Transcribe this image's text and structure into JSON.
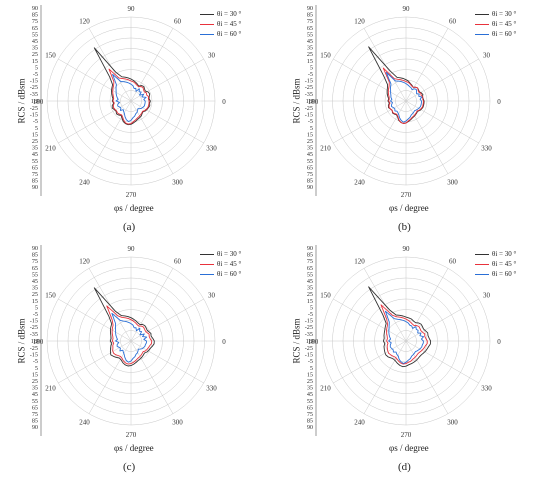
{
  "panels": [
    {
      "caption": "(a)",
      "ylabel": "RCS / dBsm",
      "xlabel": "φs / degree",
      "legend": [
        "θi = 30 °",
        "θi = 45 °",
        "θi = 60 °"
      ]
    },
    {
      "caption": "(b)",
      "ylabel": "RCS / dBsm",
      "xlabel": "φs / degree",
      "legend": [
        "θi = 30 °",
        "θi = 45 °",
        "θi = 60 °"
      ]
    },
    {
      "caption": "(c)",
      "ylabel": "RCS / dBsm",
      "xlabel": "φs / degree",
      "legend": [
        "θi = 30 °",
        "θi = 45 °",
        "θi = 60 °"
      ]
    },
    {
      "caption": "(d)",
      "ylabel": "RCS / dBsm",
      "xlabel": "φs / degree",
      "legend": [
        "θi = 30 °",
        "θi = 45 °",
        "θi = 60 °"
      ]
    }
  ],
  "colors": {
    "s30": "#333333",
    "s45": "#e8323c",
    "s60": "#2a6fd6",
    "grid": "#c8c8c8"
  },
  "chart_data": [
    {
      "type": "polar-line",
      "angle_ticks": [
        "90",
        "60",
        "30",
        "0",
        "330",
        "300",
        "270",
        "240",
        "210",
        "180",
        "150",
        "120"
      ],
      "radial_ticks_upper": [
        "90",
        "85",
        "75",
        "65",
        "55",
        "45",
        "35",
        "25",
        "15",
        "5",
        "-5",
        "-15",
        "-25",
        "-35"
      ],
      "radial_ticks_lower": [
        "-25",
        "-15",
        "-5",
        "5",
        "15",
        "25",
        "35",
        "45",
        "55",
        "65",
        "75",
        "85",
        "90"
      ],
      "series": [
        {
          "name": "θi = 30 °",
          "r": [
            -10,
            -12,
            -11,
            -9,
            -10,
            -13,
            -12,
            -10,
            -11,
            -14,
            -12,
            -10,
            -8,
            -6,
            -4,
            -2,
            0,
            10,
            60,
            10,
            -2,
            -4,
            -6,
            -8,
            -10,
            -12,
            -11,
            -13,
            -10,
            -9,
            -11,
            -12,
            -10,
            -11,
            -13,
            -10,
            -6,
            -4,
            -3,
            -4,
            -6,
            -8,
            -10,
            -11,
            -12,
            -14,
            -15,
            -13,
            -12,
            -11,
            -10,
            -11
          ]
        },
        {
          "name": "θi = 45 °",
          "r": [
            -12,
            -13,
            -12,
            -14,
            -13,
            -15,
            -14,
            -12,
            -13,
            -15,
            -14,
            -12,
            -10,
            -9,
            -7,
            -5,
            -3,
            0,
            20,
            0,
            -4,
            -6,
            -8,
            -10,
            -12,
            -13,
            -12,
            -14,
            -12,
            -11,
            -12,
            -13,
            -12,
            -13,
            -14,
            -12,
            -8,
            -5,
            -4,
            -5,
            -8,
            -10,
            -12,
            -13,
            -14,
            -15,
            -16,
            -14,
            -13,
            -12,
            -12,
            -12
          ]
        },
        {
          "name": "θi = 60 °",
          "r": [
            -18,
            -20,
            -16,
            -22,
            -18,
            -24,
            -19,
            -21,
            -17,
            -23,
            -19,
            -20,
            -16,
            -14,
            -12,
            -10,
            -8,
            -6,
            10,
            -6,
            -9,
            -12,
            -14,
            -16,
            -18,
            -20,
            -17,
            -22,
            -19,
            -18,
            -20,
            -21,
            -18,
            -22,
            -20,
            -18,
            -14,
            -10,
            -8,
            -10,
            -14,
            -16,
            -19,
            -20,
            -22,
            -24,
            -22,
            -20,
            -19,
            -18,
            -18,
            -18
          ]
        }
      ]
    },
    {
      "type": "polar-line",
      "angle_ticks": [
        "90",
        "60",
        "30",
        "0",
        "330",
        "300",
        "270",
        "240",
        "210",
        "180",
        "150",
        "120"
      ],
      "radial_ticks_upper": [
        "90",
        "85",
        "75",
        "65",
        "55",
        "45",
        "35",
        "25",
        "15",
        "5",
        "-5",
        "-15",
        "-25",
        "-35"
      ],
      "radial_ticks_lower": [
        "-25",
        "-15",
        "-5",
        "5",
        "15",
        "25",
        "35",
        "45",
        "55",
        "65",
        "75",
        "85",
        "90"
      ],
      "series": [
        {
          "name": "θi = 30 °",
          "r": [
            -12,
            -13,
            -14,
            -12,
            -13,
            -15,
            -14,
            -13,
            -14,
            -16,
            -14,
            -12,
            -9,
            -7,
            -5,
            -3,
            -1,
            12,
            62,
            12,
            -2,
            -5,
            -7,
            -9,
            -11,
            -13,
            -12,
            -14,
            -12,
            -11,
            -13,
            -14,
            -12,
            -13,
            -14,
            -12,
            -8,
            -6,
            -5,
            -6,
            -8,
            -10,
            -12,
            -13,
            -14,
            -15,
            -16,
            -14,
            -13,
            -12,
            -12,
            -12
          ]
        },
        {
          "name": "θi = 45 °",
          "r": [
            -13,
            -14,
            -13,
            -15,
            -14,
            -16,
            -15,
            -13,
            -14,
            -16,
            -15,
            -13,
            -11,
            -10,
            -8,
            -6,
            -4,
            -1,
            22,
            -1,
            -5,
            -7,
            -9,
            -11,
            -13,
            -14,
            -13,
            -15,
            -13,
            -12,
            -13,
            -14,
            -13,
            -14,
            -15,
            -13,
            -9,
            -6,
            -5,
            -6,
            -9,
            -11,
            -13,
            -14,
            -15,
            -16,
            -17,
            -15,
            -14,
            -13,
            -13,
            -13
          ]
        },
        {
          "name": "θi = 60 °",
          "r": [
            -16,
            -18,
            -15,
            -19,
            -17,
            -20,
            -18,
            -16,
            -17,
            -20,
            -18,
            -17,
            -15,
            -13,
            -11,
            -9,
            -7,
            -5,
            14,
            -5,
            -8,
            -11,
            -13,
            -15,
            -16,
            -18,
            -16,
            -19,
            -17,
            -16,
            -18,
            -19,
            -17,
            -19,
            -18,
            -16,
            -12,
            -9,
            -7,
            -9,
            -12,
            -14,
            -17,
            -18,
            -19,
            -20,
            -19,
            -18,
            -17,
            -16,
            -16,
            -16
          ]
        }
      ]
    },
    {
      "type": "polar-line",
      "angle_ticks": [
        "90",
        "60",
        "30",
        "0",
        "330",
        "300",
        "270",
        "240",
        "210",
        "180",
        "150",
        "120"
      ],
      "radial_ticks_upper": [
        "90",
        "85",
        "75",
        "65",
        "55",
        "45",
        "35",
        "25",
        "15",
        "5",
        "-5",
        "-15",
        "-25",
        "-35"
      ],
      "radial_ticks_lower": [
        "-25",
        "-15",
        "-5",
        "5",
        "15",
        "25",
        "35",
        "45",
        "55",
        "65",
        "75",
        "85",
        "90"
      ],
      "series": [
        {
          "name": "θi = 30 °",
          "r": [
            -4,
            -6,
            -8,
            -7,
            -9,
            -10,
            -9,
            -8,
            -9,
            -11,
            -10,
            -8,
            -6,
            -4,
            -2,
            0,
            2,
            12,
            60,
            12,
            0,
            -2,
            -4,
            -6,
            -8,
            -9,
            -8,
            -10,
            -8,
            -6,
            -4,
            -2,
            -4,
            -6,
            -8,
            -7,
            -4,
            -2,
            -1,
            -2,
            -4,
            -6,
            -8,
            -9,
            -10,
            -11,
            -12,
            -10,
            -9,
            -8,
            -6,
            -4
          ]
        },
        {
          "name": "θi = 45 °",
          "r": [
            -8,
            -10,
            -11,
            -10,
            -12,
            -13,
            -12,
            -11,
            -12,
            -14,
            -13,
            -11,
            -9,
            -7,
            -5,
            -3,
            -1,
            4,
            26,
            4,
            -3,
            -5,
            -7,
            -9,
            -11,
            -12,
            -11,
            -13,
            -11,
            -10,
            -8,
            -7,
            -8,
            -10,
            -11,
            -10,
            -7,
            -5,
            -4,
            -5,
            -7,
            -9,
            -11,
            -12,
            -13,
            -14,
            -15,
            -13,
            -12,
            -11,
            -10,
            -8
          ]
        },
        {
          "name": "θi = 60 °",
          "r": [
            -16,
            -20,
            -15,
            -21,
            -17,
            -23,
            -18,
            -20,
            -16,
            -22,
            -18,
            -19,
            -15,
            -13,
            -11,
            -9,
            -7,
            -4,
            12,
            -4,
            -8,
            -11,
            -13,
            -15,
            -17,
            -19,
            -16,
            -21,
            -18,
            -17,
            -19,
            -20,
            -17,
            -21,
            -19,
            -17,
            -13,
            -9,
            -7,
            -9,
            -13,
            -15,
            -18,
            -19,
            -21,
            -23,
            -21,
            -19,
            -18,
            -17,
            -17,
            -16
          ]
        }
      ]
    },
    {
      "type": "polar-line",
      "angle_ticks": [
        "90",
        "60",
        "30",
        "0",
        "330",
        "300",
        "270",
        "240",
        "210",
        "180",
        "150",
        "120"
      ],
      "radial_ticks_upper": [
        "90",
        "85",
        "75",
        "65",
        "55",
        "45",
        "35",
        "25",
        "15",
        "5",
        "-5",
        "-15",
        "-25",
        "-35"
      ],
      "radial_ticks_lower": [
        "-25",
        "-15",
        "-5",
        "5",
        "15",
        "25",
        "35",
        "45",
        "55",
        "65",
        "75",
        "85",
        "90"
      ],
      "series": [
        {
          "name": "θi = 30 °",
          "r": [
            -2,
            -4,
            -5,
            -4,
            -6,
            -7,
            -6,
            -5,
            -6,
            -8,
            -7,
            -5,
            -4,
            -3,
            -1,
            1,
            3,
            14,
            62,
            14,
            1,
            -1,
            -3,
            -4,
            -5,
            -6,
            -5,
            -7,
            -5,
            -4,
            -3,
            -2,
            -3,
            -5,
            -6,
            -5,
            -3,
            -1,
            0,
            -1,
            -3,
            -4,
            -5,
            -6,
            -7,
            -8,
            -8,
            -7,
            -6,
            -5,
            -4,
            -2
          ]
        },
        {
          "name": "θi = 45 °",
          "r": [
            -7,
            -9,
            -10,
            -9,
            -11,
            -12,
            -11,
            -10,
            -11,
            -13,
            -12,
            -10,
            -8,
            -6,
            -4,
            -2,
            0,
            5,
            28,
            5,
            -2,
            -4,
            -6,
            -8,
            -10,
            -11,
            -10,
            -12,
            -10,
            -9,
            -8,
            -7,
            -8,
            -9,
            -10,
            -9,
            -7,
            -5,
            -4,
            -5,
            -7,
            -8,
            -10,
            -11,
            -12,
            -13,
            -13,
            -12,
            -11,
            -10,
            -9,
            -7
          ]
        },
        {
          "name": "θi = 60 °",
          "r": [
            -13,
            -16,
            -12,
            -17,
            -14,
            -18,
            -15,
            -16,
            -13,
            -18,
            -15,
            -15,
            -12,
            -10,
            -8,
            -6,
            -4,
            -1,
            16,
            -1,
            -5,
            -8,
            -10,
            -12,
            -14,
            -16,
            -13,
            -17,
            -15,
            -14,
            -15,
            -16,
            -14,
            -17,
            -15,
            -14,
            -10,
            -7,
            -5,
            -7,
            -10,
            -12,
            -15,
            -16,
            -17,
            -18,
            -17,
            -16,
            -15,
            -14,
            -14,
            -13
          ]
        }
      ]
    }
  ]
}
